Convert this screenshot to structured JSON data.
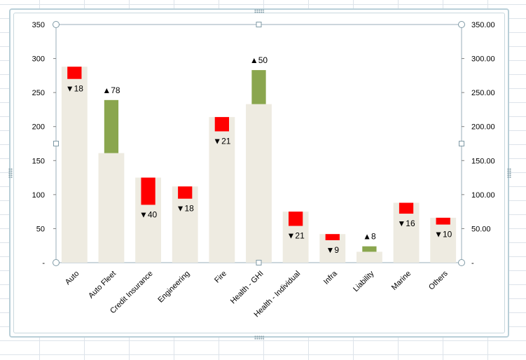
{
  "chart_data": {
    "type": "bar",
    "subtype": "waterfall",
    "title": "",
    "categories": [
      "Auto",
      "Auto Fleet",
      "Credit Insurance",
      "Engineering",
      "Fire",
      "Health - GHI",
      "Health - Individual",
      "Infra",
      "Liability",
      "Marine",
      "Others"
    ],
    "series": [
      {
        "name": "",
        "role": "base",
        "color": "#eeebe1",
        "values": [
          288,
          161,
          125,
          112,
          214,
          233,
          75,
          42,
          16,
          88,
          66
        ]
      },
      {
        "name": "",
        "role": "decrease",
        "color": "#ff0000",
        "values": [
          18,
          0,
          40,
          18,
          21,
          0,
          21,
          9,
          0,
          16,
          10
        ]
      },
      {
        "name": "",
        "role": "increase",
        "color": "#8aa64e",
        "values": [
          0,
          78,
          0,
          0,
          0,
          50,
          0,
          0,
          8,
          0,
          0
        ]
      }
    ],
    "change_labels": [
      "▼18",
      "▲78",
      "▼40",
      "▼18",
      "▼21",
      "▲50",
      "▼21",
      "▼9",
      "▲8",
      "▼16",
      "▼10"
    ],
    "ylim": [
      0,
      350
    ],
    "y_ticks": [
      0,
      50,
      100,
      150,
      200,
      250,
      300,
      350
    ],
    "y_left_tick_labels": [
      "-",
      "50",
      "100",
      "150",
      "200",
      "250",
      "300",
      "350"
    ],
    "y_right_tick_labels": [
      "-",
      "50.00",
      "100.00",
      "150.00",
      "200.00",
      "250.00",
      "300.00",
      "350.00"
    ],
    "grid": false,
    "legend": "none",
    "xlabel": "",
    "ylabel": ""
  }
}
